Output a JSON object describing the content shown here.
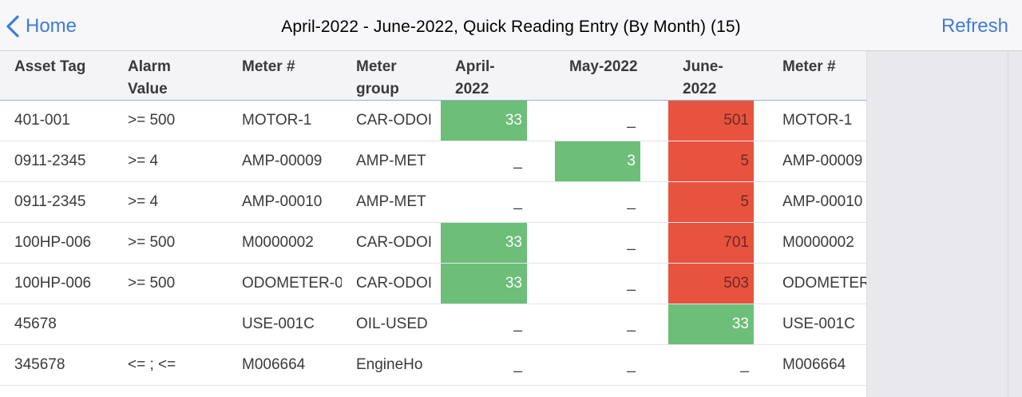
{
  "nav": {
    "back_label": "Home",
    "title": "April-2022 - June-2022, Quick Reading Entry (By Month) (15)",
    "refresh_label": "Refresh"
  },
  "colors": {
    "accent": "#3d7cd9",
    "ok": "#6dbe78",
    "alarm": "#e8533f"
  },
  "table": {
    "columns": [
      {
        "line1": "Asset Tag",
        "line2": ""
      },
      {
        "line1": "Alarm",
        "line2": "Value"
      },
      {
        "line1": "Meter #",
        "line2": ""
      },
      {
        "line1": "Meter",
        "line2": "group"
      },
      {
        "line1": "April-2022",
        "line2": ""
      },
      {
        "line1": "May-2022",
        "line2": ""
      },
      {
        "line1": "June-2022",
        "line2": ""
      },
      {
        "line1": "Meter #",
        "line2": ""
      }
    ],
    "rows": [
      {
        "asset": "401-001",
        "alarm": ">= 500",
        "meter": "MOTOR-1",
        "group": "CAR-ODOI",
        "april": {
          "value": "33",
          "status": "ok"
        },
        "may": {
          "value": "_",
          "status": ""
        },
        "june": {
          "value": "501",
          "status": "alarm"
        },
        "meter2": "MOTOR-1"
      },
      {
        "asset": "0911-2345",
        "alarm": ">= 4",
        "meter": "AMP-00009",
        "group": "AMP-MET",
        "april": {
          "value": "_",
          "status": ""
        },
        "may": {
          "value": "3",
          "status": "ok"
        },
        "june": {
          "value": "5",
          "status": "alarm"
        },
        "meter2": "AMP-00009"
      },
      {
        "asset": "0911-2345",
        "alarm": ">= 4",
        "meter": "AMP-00010",
        "group": "AMP-MET",
        "april": {
          "value": "_",
          "status": ""
        },
        "may": {
          "value": "_",
          "status": ""
        },
        "june": {
          "value": "5",
          "status": "alarm"
        },
        "meter2": "AMP-00010"
      },
      {
        "asset": "100HP-006",
        "alarm": ">= 500",
        "meter": "M0000002",
        "group": "CAR-ODOI",
        "april": {
          "value": "33",
          "status": "ok"
        },
        "may": {
          "value": "_",
          "status": ""
        },
        "june": {
          "value": "701",
          "status": "alarm"
        },
        "meter2": "M0000002"
      },
      {
        "asset": "100HP-006",
        "alarm": ">= 500",
        "meter": "ODOMETER-0",
        "group": "CAR-ODOI",
        "april": {
          "value": "33",
          "status": "ok"
        },
        "may": {
          "value": "_",
          "status": ""
        },
        "june": {
          "value": "503",
          "status": "alarm"
        },
        "meter2": "ODOMETER"
      },
      {
        "asset": "45678",
        "alarm": "",
        "meter": "USE-001C",
        "group": "OIL-USED",
        "april": {
          "value": "_",
          "status": ""
        },
        "may": {
          "value": "_",
          "status": ""
        },
        "june": {
          "value": "33",
          "status": "ok"
        },
        "meter2": "USE-001C"
      },
      {
        "asset": "345678",
        "alarm": "<= ; <=",
        "meter": "M006664",
        "group": "EngineHo",
        "april": {
          "value": "_",
          "status": ""
        },
        "may": {
          "value": "_",
          "status": ""
        },
        "june": {
          "value": "_",
          "status": ""
        },
        "meter2": "M006664"
      }
    ]
  }
}
